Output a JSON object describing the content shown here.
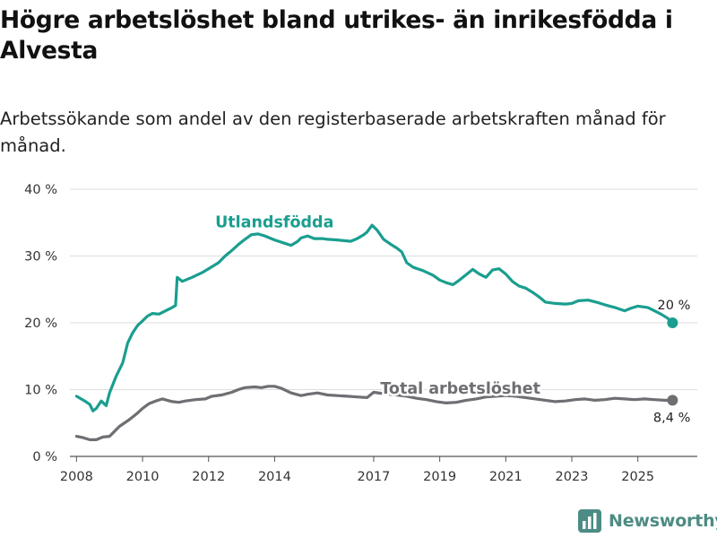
{
  "title": "Högre arbetslöshet bland utrikes- än inrikesfödda i Alvesta",
  "subtitle": "Arbetssökande som andel av den registerbaserade arbetskraften månad för månad.",
  "brand": {
    "name": "Newsworthy",
    "color": "#4d8c84",
    "icon": "bar-chart-logo-icon"
  },
  "chart_data": {
    "type": "line",
    "title": "Högre arbetslöshet bland utrikes- än inrikesfödda i Alvesta",
    "xlabel": "",
    "ylabel": "",
    "ylim": [
      0,
      40
    ],
    "xlim": [
      2007.8,
      2026.8
    ],
    "yticks": [
      0,
      10,
      20,
      30,
      40
    ],
    "ytick_labels": [
      "0 %",
      "10 %",
      "20 %",
      "30 %",
      "40 %"
    ],
    "xticks": [
      2008,
      2010,
      2012,
      2014,
      2017,
      2019,
      2021,
      2023,
      2025
    ],
    "xtick_labels": [
      "2008",
      "2010",
      "2012",
      "2014",
      "2017",
      "2019",
      "2021",
      "2023",
      "2025"
    ],
    "grid": true,
    "series": [
      {
        "name": "Utlandsfödda",
        "color": "#1a9e8f",
        "label_x": 2012.2,
        "label_y": 34.3,
        "end_label": "20 %",
        "x": [
          2008.0,
          2008.25,
          2008.4,
          2008.5,
          2008.6,
          2008.75,
          2008.9,
          2009.0,
          2009.2,
          2009.4,
          2009.55,
          2009.7,
          2009.85,
          2010.0,
          2010.15,
          2010.3,
          2010.5,
          2010.7,
          2010.9,
          2011.0,
          2011.05,
          2011.2,
          2011.5,
          2011.8,
          2012.0,
          2012.3,
          2012.5,
          2012.7,
          2012.9,
          2013.1,
          2013.3,
          2013.5,
          2013.7,
          2014.0,
          2014.3,
          2014.5,
          2014.7,
          2014.8,
          2015.0,
          2015.2,
          2015.45,
          2015.6,
          2015.9,
          2016.1,
          2016.3,
          2016.5,
          2016.7,
          2016.8,
          2016.95,
          2017.1,
          2017.3,
          2017.5,
          2017.7,
          2017.85,
          2018.0,
          2018.2,
          2018.5,
          2018.8,
          2019.0,
          2019.2,
          2019.4,
          2019.6,
          2019.8,
          2020.0,
          2020.2,
          2020.4,
          2020.6,
          2020.8,
          2021.0,
          2021.2,
          2021.4,
          2021.6,
          2021.8,
          2022.0,
          2022.2,
          2022.5,
          2022.8,
          2023.0,
          2023.2,
          2023.5,
          2023.8,
          2024.0,
          2024.3,
          2024.6,
          2024.8,
          2025.0,
          2025.3,
          2025.5,
          2025.7,
          2025.9,
          2026.05
        ],
        "values": [
          9.0,
          8.3,
          7.8,
          6.8,
          7.2,
          8.3,
          7.6,
          9.5,
          12.0,
          14.0,
          17.0,
          18.5,
          19.6,
          20.3,
          21.0,
          21.4,
          21.3,
          21.8,
          22.3,
          22.6,
          26.8,
          26.2,
          26.8,
          27.5,
          28.1,
          29.0,
          30.0,
          30.8,
          31.7,
          32.5,
          33.2,
          33.3,
          33.0,
          32.4,
          31.9,
          31.6,
          32.2,
          32.7,
          33.0,
          32.6,
          32.6,
          32.5,
          32.4,
          32.3,
          32.2,
          32.6,
          33.2,
          33.6,
          34.6,
          33.9,
          32.5,
          31.8,
          31.2,
          30.6,
          29.0,
          28.3,
          27.8,
          27.1,
          26.4,
          26.0,
          25.7,
          26.4,
          27.2,
          28.0,
          27.3,
          26.8,
          27.9,
          28.1,
          27.3,
          26.2,
          25.5,
          25.2,
          24.6,
          23.9,
          23.1,
          22.9,
          22.8,
          22.9,
          23.3,
          23.4,
          23.0,
          22.7,
          22.3,
          21.8,
          22.2,
          22.5,
          22.3,
          21.8,
          21.3,
          20.7,
          20.0
        ]
      },
      {
        "name": "Total arbetslöshet",
        "color": "#6e6e73",
        "label_x": 2017.2,
        "label_y": 9.4,
        "end_label": "8,4 %",
        "x": [
          2008.0,
          2008.2,
          2008.4,
          2008.6,
          2008.8,
          2009.0,
          2009.3,
          2009.6,
          2009.85,
          2010.0,
          2010.2,
          2010.4,
          2010.6,
          2010.9,
          2011.1,
          2011.3,
          2011.6,
          2011.9,
          2012.1,
          2012.4,
          2012.7,
          2012.9,
          2013.1,
          2013.4,
          2013.6,
          2013.8,
          2014.0,
          2014.2,
          2014.5,
          2014.8,
          2015.0,
          2015.3,
          2015.6,
          2015.9,
          2016.2,
          2016.5,
          2016.8,
          2017.0,
          2017.3,
          2017.7,
          2018.0,
          2018.3,
          2018.6,
          2018.9,
          2019.2,
          2019.5,
          2019.8,
          2020.1,
          2020.4,
          2020.7,
          2021.0,
          2021.3,
          2021.6,
          2021.9,
          2022.2,
          2022.5,
          2022.8,
          2023.1,
          2023.4,
          2023.7,
          2024.0,
          2024.3,
          2024.6,
          2024.9,
          2025.2,
          2025.5,
          2025.8,
          2026.05
        ],
        "values": [
          3.0,
          2.8,
          2.5,
          2.5,
          2.9,
          3.0,
          4.5,
          5.5,
          6.5,
          7.2,
          7.9,
          8.3,
          8.6,
          8.2,
          8.1,
          8.3,
          8.5,
          8.6,
          9.0,
          9.2,
          9.6,
          10.0,
          10.3,
          10.4,
          10.3,
          10.5,
          10.5,
          10.2,
          9.5,
          9.1,
          9.3,
          9.5,
          9.2,
          9.1,
          9.0,
          8.9,
          8.8,
          9.6,
          9.4,
          9.2,
          9.0,
          8.7,
          8.5,
          8.2,
          8.0,
          8.1,
          8.4,
          8.6,
          8.9,
          9.0,
          9.1,
          9.0,
          8.8,
          8.6,
          8.4,
          8.2,
          8.3,
          8.5,
          8.6,
          8.4,
          8.5,
          8.7,
          8.6,
          8.5,
          8.6,
          8.5,
          8.4,
          8.4
        ]
      }
    ]
  }
}
